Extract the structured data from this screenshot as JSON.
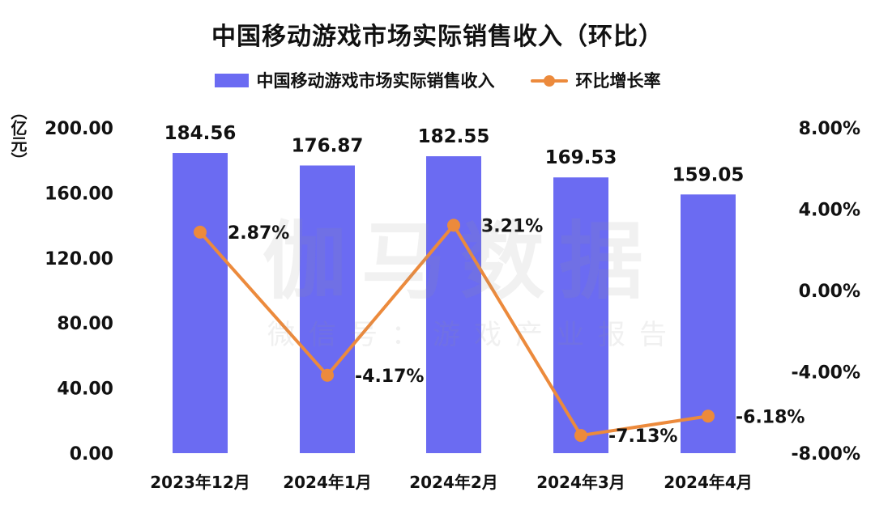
{
  "title": "中国移动游戏市场实际销售收入（环比）",
  "unit_label": "（亿元）",
  "watermark": {
    "main": "伽马数据",
    "sub": "微信号：游戏产业报告"
  },
  "colors": {
    "bar": "#6b6bf2",
    "line": "#ec8a3c"
  },
  "chart_data": {
    "type": "bar+line",
    "title": "中国移动游戏市场实际销售收入（环比）",
    "categories": [
      "2023年12月",
      "2024年1月",
      "2024年2月",
      "2024年3月",
      "2024年4月"
    ],
    "series": [
      {
        "name": "中国移动游戏市场实际销售收入",
        "type": "bar",
        "axis": "left",
        "values": [
          184.56,
          176.87,
          182.55,
          169.53,
          159.05
        ],
        "labels": [
          "184.56",
          "176.87",
          "182.55",
          "169.53",
          "159.05"
        ]
      },
      {
        "name": "环比增长率",
        "type": "line",
        "axis": "right",
        "values": [
          2.87,
          -4.17,
          3.21,
          -7.13,
          -6.18
        ],
        "labels": [
          "2.87%",
          "-4.17%",
          "3.21%",
          "-7.13%",
          "-6.18%"
        ]
      }
    ],
    "left_axis": {
      "label": "（亿元）",
      "min": 0,
      "max": 200,
      "ticks": [
        "0.00",
        "40.00",
        "80.00",
        "120.00",
        "160.00",
        "200.00"
      ]
    },
    "right_axis": {
      "min": -8,
      "max": 8,
      "ticks": [
        "-8.00%",
        "-4.00%",
        "0.00%",
        "4.00%",
        "8.00%"
      ]
    },
    "legend_position": "top-center",
    "grid": false
  }
}
